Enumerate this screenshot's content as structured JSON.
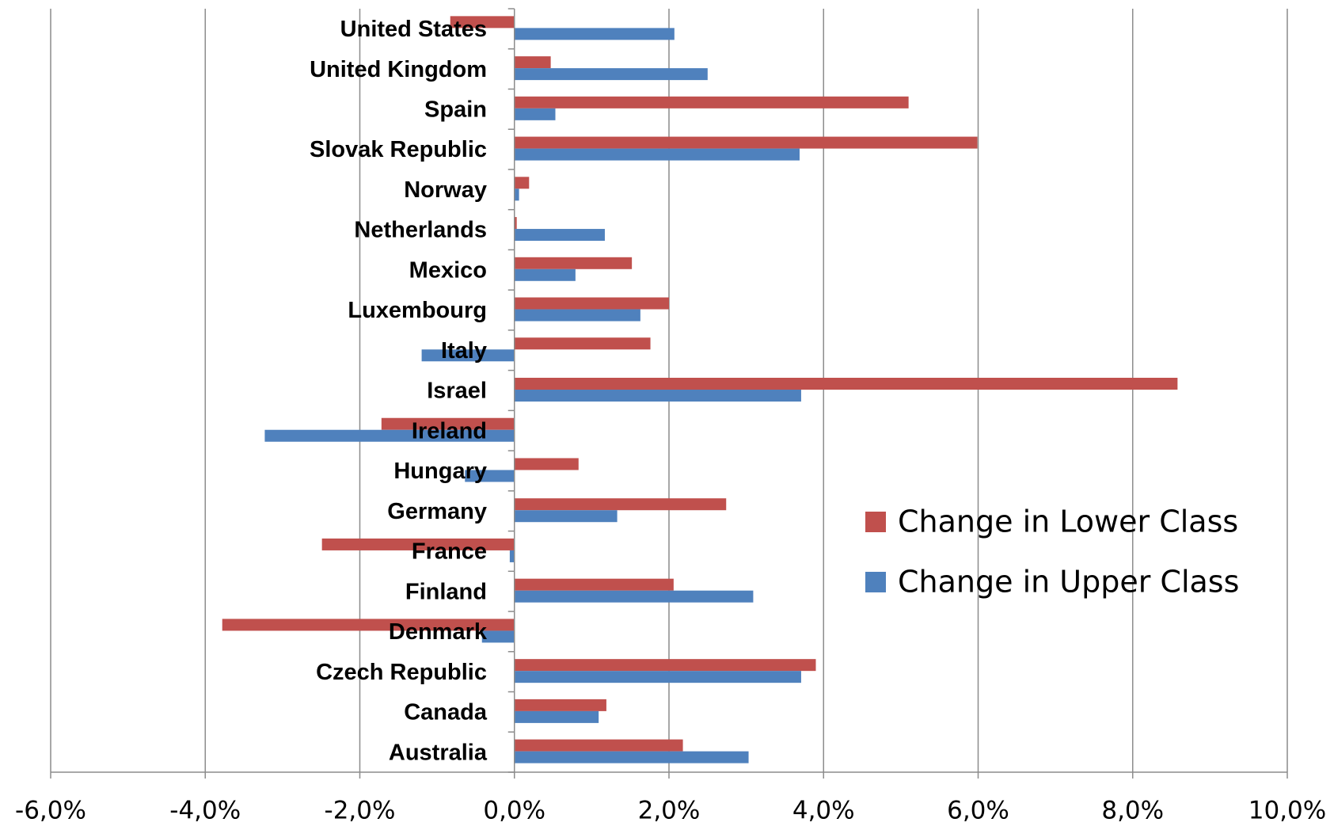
{
  "chart_data": {
    "type": "hbar",
    "categories": [
      "Australia",
      "Canada",
      "Czech Republic",
      "Denmark",
      "Finland",
      "France",
      "Germany",
      "Hungary",
      "Ireland",
      "Israel",
      "Italy",
      "Luxembourg",
      "Mexico",
      "Netherlands",
      "Norway",
      "Slovak Republic",
      "Spain",
      "United Kingdom",
      "United States"
    ],
    "series": [
      {
        "name": "Change in Lower Class",
        "color": "#c0504d",
        "values": [
          2.18,
          1.19,
          3.9,
          -3.78,
          2.06,
          -2.49,
          2.74,
          0.83,
          -1.72,
          8.58,
          1.76,
          2.0,
          1.52,
          0.03,
          0.19,
          5.99,
          5.1,
          0.47,
          -0.83
        ]
      },
      {
        "name": "Change in Upper Class",
        "color": "#4f81bd",
        "values": [
          3.03,
          1.09,
          3.71,
          -0.42,
          3.09,
          -0.06,
          1.33,
          -0.64,
          -3.23,
          3.71,
          -1.2,
          1.63,
          0.79,
          1.17,
          0.06,
          3.69,
          0.53,
          2.5,
          2.07
        ]
      }
    ],
    "xlim": [
      -6,
      10
    ],
    "xticks": [
      {
        "value": -6,
        "label": "-6,0%"
      },
      {
        "value": -4,
        "label": "-4,0%"
      },
      {
        "value": -2,
        "label": "-2,0%"
      },
      {
        "value": 0,
        "label": "0,0%"
      },
      {
        "value": 2,
        "label": "2,0%"
      },
      {
        "value": 4,
        "label": "4,0%"
      },
      {
        "value": 6,
        "label": "6,0%"
      },
      {
        "value": 8,
        "label": "8,0%"
      },
      {
        "value": 10,
        "label": "10,0%"
      }
    ],
    "grid": true,
    "legend": "right"
  }
}
